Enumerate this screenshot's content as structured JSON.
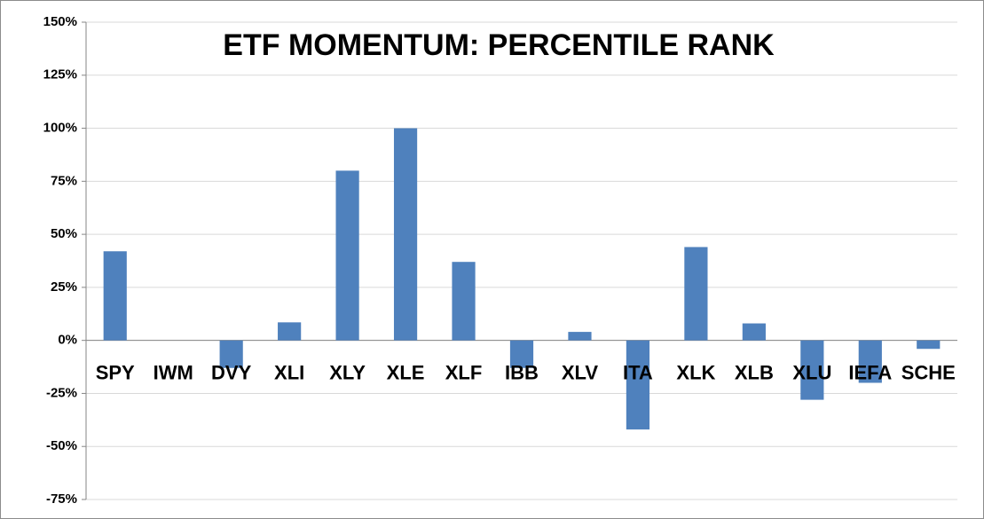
{
  "chart_data": {
    "type": "bar",
    "title": "ETF MOMENTUM: PERCENTILE RANK",
    "categories": [
      "SPY",
      "IWM",
      "DVY",
      "XLI",
      "XLY",
      "XLE",
      "XLF",
      "IBB",
      "XLV",
      "ITA",
      "XLK",
      "XLB",
      "XLU",
      "IEFA",
      "SCHE"
    ],
    "values": [
      42,
      0,
      -13,
      8.5,
      80,
      100,
      37,
      -13,
      4,
      -42,
      44,
      8,
      -28,
      -20,
      -4
    ],
    "color": "#4f81bd",
    "ylim": [
      -75,
      150
    ],
    "yticks": [
      {
        "value": -75,
        "label": "-75%"
      },
      {
        "value": -50,
        "label": "-50%"
      },
      {
        "value": -25,
        "label": "-25%"
      },
      {
        "value": 0,
        "label": "0%"
      },
      {
        "value": 25,
        "label": "25%"
      },
      {
        "value": 50,
        "label": "50%"
      },
      {
        "value": 75,
        "label": "75%"
      },
      {
        "value": 100,
        "label": "100%"
      },
      {
        "value": 125,
        "label": "125%"
      },
      {
        "value": 150,
        "label": "150%"
      }
    ],
    "grid": true
  }
}
